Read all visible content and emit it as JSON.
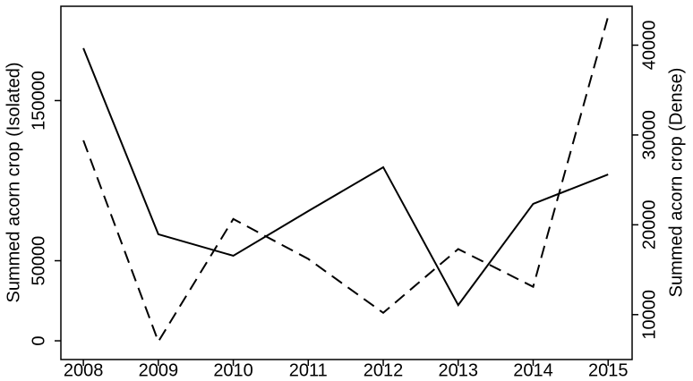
{
  "chart_data": {
    "type": "line",
    "ylabel": "Summed acorn crop (Isolated)",
    "y2label": "Summed acorn crop (Dense)",
    "x": [
      2008,
      2009,
      2010,
      2011,
      2012,
      2013,
      2014,
      2015
    ],
    "xlim": [
      2007.7,
      2015.32
    ],
    "xticks": [
      2008,
      2009,
      2010,
      2011,
      2012,
      2013,
      2014,
      2015
    ],
    "ylim": [
      -11700,
      208900
    ],
    "yticks": [
      0,
      50000,
      150000
    ],
    "y2lim": [
      5000,
      44330
    ],
    "y2ticks": [
      10000,
      20000,
      30000,
      40000
    ],
    "series": [
      {
        "color": "#000000",
        "line_style": "solid",
        "values": [
          182700,
          66500,
          53100,
          81000,
          108400,
          22300,
          85500,
          103900
        ]
      },
      {
        "color": "#000000",
        "line_style": "dashed",
        "axis": "y2",
        "values": [
          29400,
          7000,
          20650,
          16200,
          10200,
          17300,
          13100,
          43200
        ]
      }
    ]
  }
}
